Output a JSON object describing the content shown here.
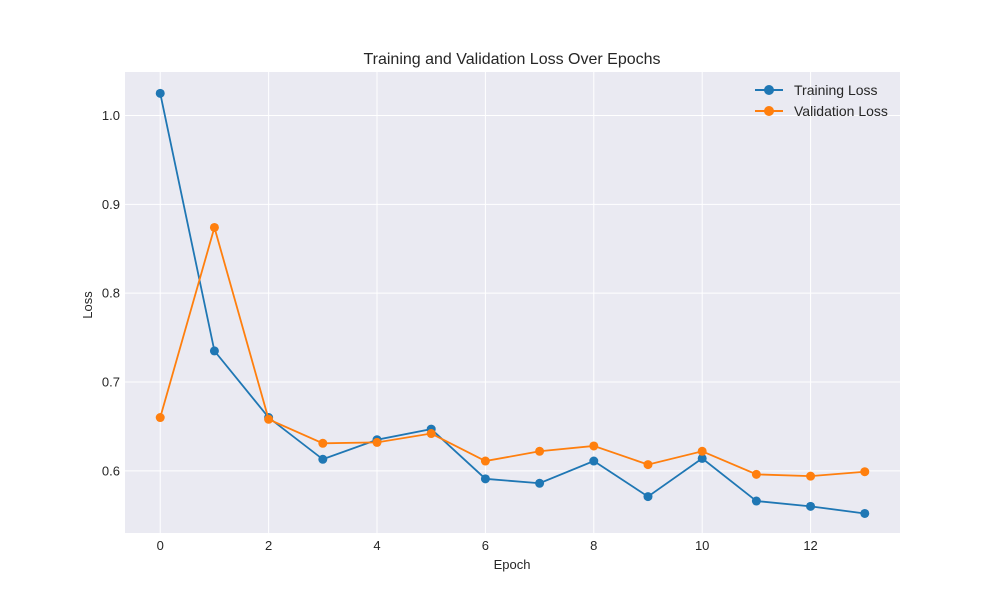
{
  "chart_data": {
    "type": "line",
    "title": "Training and Validation Loss Over Epochs",
    "xlabel": "Epoch",
    "ylabel": "Loss",
    "xlim": [
      -0.65,
      13.65
    ],
    "ylim": [
      0.53,
      1.049
    ],
    "x": [
      0,
      1,
      2,
      3,
      4,
      5,
      6,
      7,
      8,
      9,
      10,
      11,
      12,
      13
    ],
    "xticks": [
      0,
      2,
      4,
      6,
      8,
      10,
      12
    ],
    "yticks": [
      0.6,
      0.7,
      0.8,
      0.9,
      1.0
    ],
    "xtick_labels": [
      "0",
      "2",
      "4",
      "6",
      "8",
      "10",
      "12"
    ],
    "ytick_labels": [
      "0.6",
      "0.7",
      "0.8",
      "0.9",
      "1.0"
    ],
    "grid": true,
    "legend_position": "top-right",
    "background": "#eaeaf2",
    "series": [
      {
        "name": "Training Loss",
        "color": "#1f77b4",
        "values": [
          1.025,
          0.735,
          0.66,
          0.613,
          0.635,
          0.647,
          0.591,
          0.586,
          0.611,
          0.571,
          0.614,
          0.566,
          0.56,
          0.552
        ]
      },
      {
        "name": "Validation Loss",
        "color": "#ff7f0e",
        "values": [
          0.66,
          0.874,
          0.658,
          0.631,
          0.632,
          0.642,
          0.611,
          0.622,
          0.628,
          0.607,
          0.622,
          0.596,
          0.594,
          0.599
        ]
      }
    ]
  }
}
